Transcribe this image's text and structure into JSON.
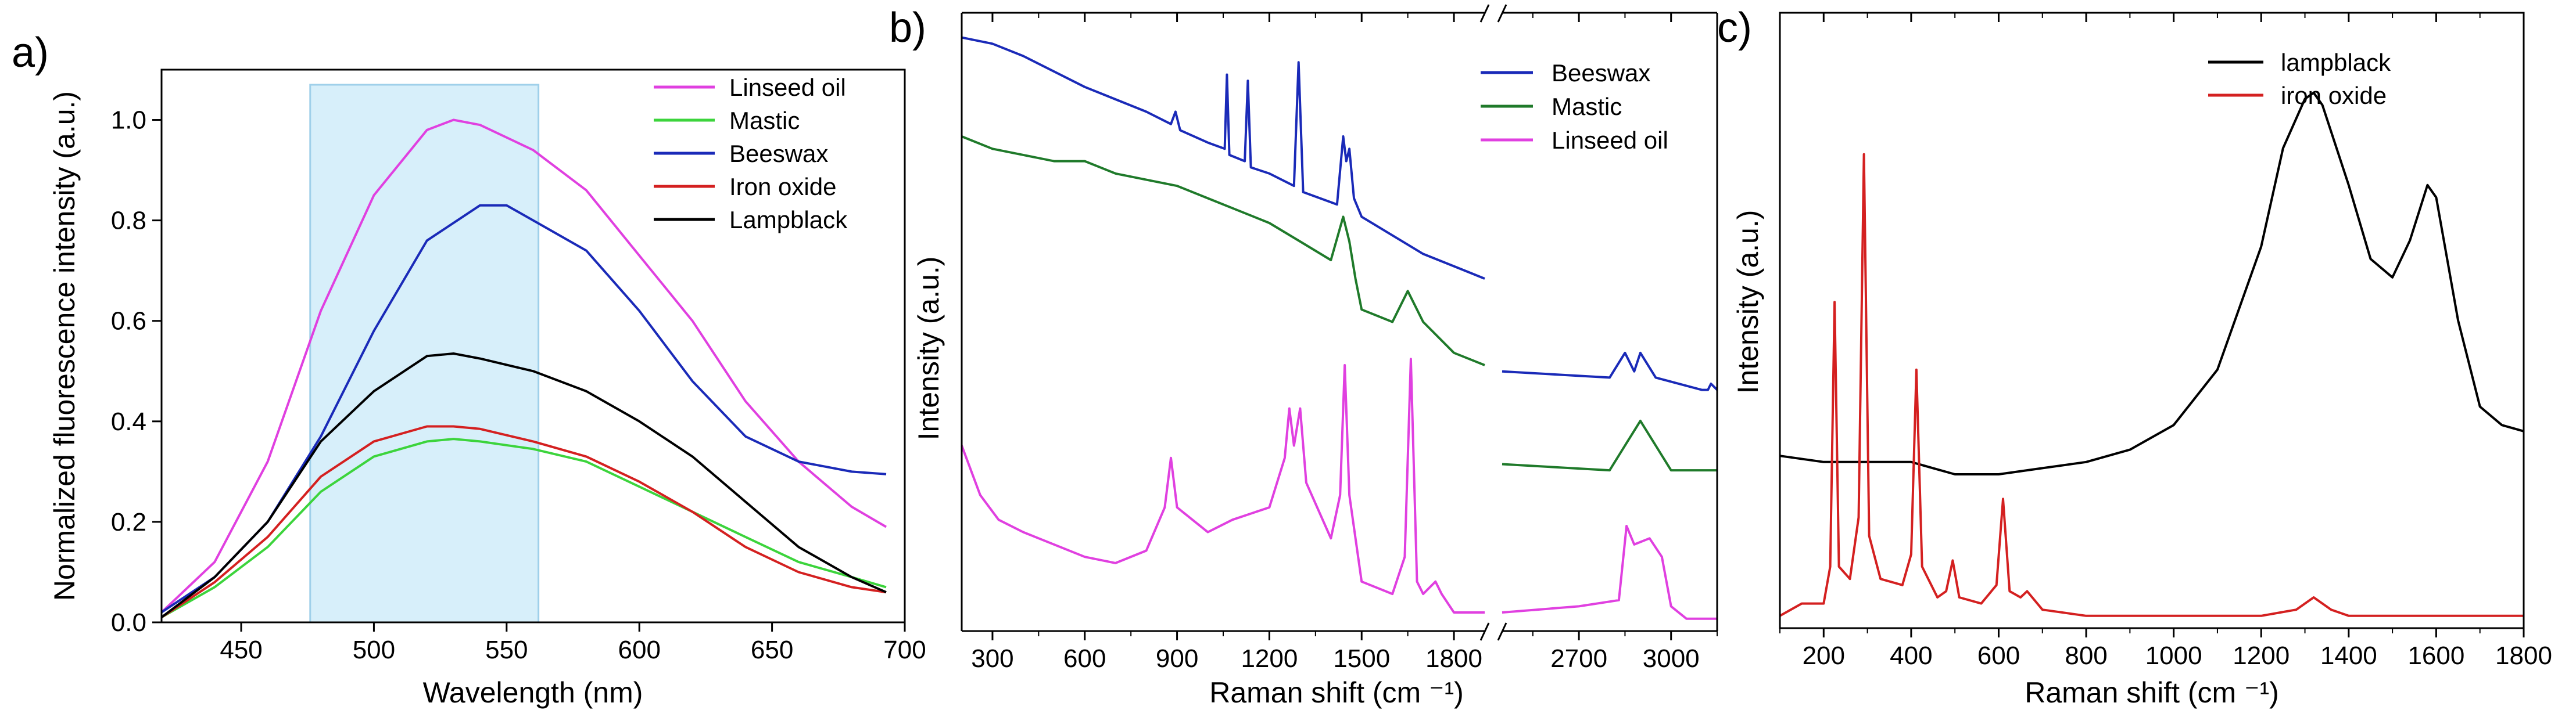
{
  "chart_data": [
    {
      "panel_label": "a)",
      "type": "line",
      "xlabel": "Wavelength (nm)",
      "ylabel": "Normalized fluorescence intensity (a.u.)",
      "xlim": [
        420,
        700
      ],
      "ylim": [
        0,
        1.1
      ],
      "x_ticks": [
        450,
        500,
        550,
        600,
        650,
        700
      ],
      "y_ticks": [
        0.0,
        0.2,
        0.4,
        0.6,
        0.8,
        1.0
      ],
      "x_tick_labels": [
        "450",
        "500",
        "550",
        "600",
        "650",
        "700"
      ],
      "y_tick_labels": [
        "0.0",
        "0.2",
        "0.4",
        "0.6",
        "0.8",
        "1.0"
      ],
      "highlight": {
        "x_range": [
          476,
          562
        ],
        "color": "#d7effa"
      },
      "legend_position": "top-right",
      "series": [
        {
          "name": "Linseed oil",
          "color": "#e040e0",
          "x": [
            420,
            440,
            460,
            480,
            500,
            520,
            530,
            540,
            560,
            580,
            600,
            620,
            640,
            660,
            680,
            693
          ],
          "y": [
            0.02,
            0.12,
            0.32,
            0.62,
            0.85,
            0.98,
            1.0,
            0.99,
            0.94,
            0.86,
            0.73,
            0.6,
            0.44,
            0.32,
            0.23,
            0.19
          ]
        },
        {
          "name": "Mastic",
          "color": "#3cd43c",
          "x": [
            420,
            440,
            460,
            480,
            500,
            520,
            530,
            540,
            560,
            580,
            600,
            620,
            640,
            660,
            680,
            693
          ],
          "y": [
            0.01,
            0.07,
            0.15,
            0.26,
            0.33,
            0.36,
            0.365,
            0.36,
            0.345,
            0.32,
            0.27,
            0.22,
            0.17,
            0.12,
            0.09,
            0.07
          ]
        },
        {
          "name": "Beeswax",
          "color": "#1a2ab8",
          "x": [
            420,
            440,
            460,
            480,
            500,
            520,
            540,
            550,
            560,
            580,
            600,
            620,
            640,
            660,
            680,
            693
          ],
          "y": [
            0.02,
            0.09,
            0.2,
            0.37,
            0.58,
            0.76,
            0.83,
            0.83,
            0.8,
            0.74,
            0.62,
            0.48,
            0.37,
            0.32,
            0.3,
            0.295
          ]
        },
        {
          "name": "Iron oxide",
          "color": "#d42020",
          "x": [
            420,
            440,
            460,
            480,
            500,
            520,
            530,
            540,
            560,
            580,
            600,
            620,
            640,
            660,
            680,
            693
          ],
          "y": [
            0.01,
            0.08,
            0.17,
            0.29,
            0.36,
            0.39,
            0.39,
            0.385,
            0.36,
            0.33,
            0.28,
            0.22,
            0.15,
            0.1,
            0.07,
            0.06
          ]
        },
        {
          "name": "Lampblack",
          "color": "#000000",
          "x": [
            420,
            440,
            460,
            480,
            500,
            520,
            530,
            540,
            560,
            580,
            600,
            620,
            640,
            660,
            680,
            693
          ],
          "y": [
            0.01,
            0.09,
            0.2,
            0.36,
            0.46,
            0.53,
            0.535,
            0.525,
            0.5,
            0.46,
            0.4,
            0.33,
            0.24,
            0.15,
            0.09,
            0.06
          ]
        }
      ]
    },
    {
      "panel_label": "b)",
      "type": "line",
      "xlabel": "Raman shift (cm ⁻¹)",
      "ylabel": "Intensity (a.u.)",
      "xlim": [
        200,
        3150
      ],
      "x_break": [
        1900,
        2450
      ],
      "x_ticks": [
        300,
        600,
        900,
        1200,
        1500,
        1800,
        2700,
        3000
      ],
      "x_tick_labels": [
        "300",
        "600",
        "900",
        "1200",
        "1500",
        "1800",
        "2700",
        "3000"
      ],
      "y_ticks_shown": false,
      "legend_position": "top-right",
      "series": [
        {
          "name": "Beeswax",
          "color": "#1a2ab8",
          "x": [
            200,
            300,
            400,
            600,
            800,
            880,
            895,
            910,
            1000,
            1055,
            1062,
            1070,
            1120,
            1130,
            1140,
            1200,
            1280,
            1295,
            1310,
            1420,
            1440,
            1450,
            1460,
            1475,
            1500,
            1600,
            1700,
            1800,
            1900,
            2450,
            2800,
            2850,
            2880,
            2900,
            2950,
            3100,
            3120,
            3130,
            3150
          ],
          "y": [
            0.96,
            0.95,
            0.93,
            0.88,
            0.84,
            0.82,
            0.84,
            0.81,
            0.79,
            0.78,
            0.9,
            0.77,
            0.76,
            0.89,
            0.75,
            0.74,
            0.72,
            0.92,
            0.71,
            0.69,
            0.8,
            0.76,
            0.78,
            0.7,
            0.67,
            0.64,
            0.61,
            0.59,
            0.57,
            0.42,
            0.41,
            0.45,
            0.42,
            0.45,
            0.41,
            0.39,
            0.39,
            0.4,
            0.39
          ]
        },
        {
          "name": "Mastic",
          "color": "#1f7a2a",
          "x": [
            200,
            300,
            400,
            500,
            600,
            700,
            800,
            900,
            1000,
            1100,
            1200,
            1300,
            1400,
            1440,
            1460,
            1480,
            1500,
            1600,
            1650,
            1700,
            1800,
            1900,
            2450,
            2800,
            2850,
            2900,
            2950,
            3000,
            3150
          ],
          "y": [
            0.8,
            0.78,
            0.77,
            0.76,
            0.76,
            0.74,
            0.73,
            0.72,
            0.7,
            0.68,
            0.66,
            0.63,
            0.6,
            0.67,
            0.63,
            0.57,
            0.52,
            0.5,
            0.55,
            0.5,
            0.45,
            0.43,
            0.27,
            0.26,
            0.3,
            0.34,
            0.3,
            0.26,
            0.26
          ]
        },
        {
          "name": "Linseed oil",
          "color": "#e040e0",
          "x": [
            200,
            260,
            320,
            400,
            600,
            700,
            800,
            860,
            880,
            900,
            1000,
            1080,
            1200,
            1250,
            1265,
            1280,
            1300,
            1320,
            1400,
            1430,
            1445,
            1460,
            1500,
            1600,
            1640,
            1660,
            1680,
            1700,
            1740,
            1760,
            1800,
            1900,
            2450,
            2700,
            2830,
            2855,
            2880,
            2930,
            2970,
            3000,
            3050,
            3150
          ],
          "y": [
            0.3,
            0.22,
            0.18,
            0.16,
            0.12,
            0.11,
            0.13,
            0.2,
            0.28,
            0.2,
            0.16,
            0.18,
            0.2,
            0.28,
            0.36,
            0.3,
            0.36,
            0.24,
            0.15,
            0.22,
            0.43,
            0.22,
            0.08,
            0.06,
            0.12,
            0.44,
            0.08,
            0.06,
            0.08,
            0.06,
            0.03,
            0.03,
            0.03,
            0.04,
            0.05,
            0.17,
            0.14,
            0.15,
            0.12,
            0.04,
            0.02,
            0.02
          ]
        }
      ]
    },
    {
      "panel_label": "c)",
      "type": "line",
      "xlabel": "Raman shift (cm ⁻¹)",
      "ylabel": "Intensity (a.u.)",
      "xlim": [
        100,
        1800
      ],
      "x_ticks": [
        200,
        400,
        600,
        800,
        1000,
        1200,
        1400,
        1600,
        1800
      ],
      "x_tick_labels": [
        "200",
        "400",
        "600",
        "800",
        "1000",
        "1200",
        "1400",
        "1600",
        "1800"
      ],
      "y_ticks_shown": false,
      "legend_position": "top-right",
      "series": [
        {
          "name": "lampblack",
          "color": "#000000",
          "x": [
            100,
            200,
            300,
            400,
            450,
            500,
            600,
            700,
            800,
            900,
            1000,
            1100,
            1200,
            1250,
            1300,
            1320,
            1340,
            1400,
            1450,
            1500,
            1540,
            1580,
            1600,
            1650,
            1700,
            1750,
            1800
          ],
          "y": [
            0.28,
            0.27,
            0.27,
            0.27,
            0.26,
            0.25,
            0.25,
            0.26,
            0.27,
            0.29,
            0.33,
            0.42,
            0.62,
            0.78,
            0.86,
            0.87,
            0.85,
            0.72,
            0.6,
            0.57,
            0.63,
            0.72,
            0.7,
            0.5,
            0.36,
            0.33,
            0.32
          ]
        },
        {
          "name": "iron oxide",
          "color": "#d42020",
          "x": [
            100,
            150,
            200,
            215,
            225,
            235,
            260,
            280,
            292,
            304,
            330,
            380,
            400,
            412,
            425,
            460,
            480,
            495,
            510,
            560,
            595,
            610,
            625,
            650,
            665,
            700,
            800,
            900,
            1000,
            1100,
            1200,
            1280,
            1320,
            1360,
            1400,
            1500,
            1600,
            1700,
            1800
          ],
          "y": [
            0.02,
            0.04,
            0.04,
            0.1,
            0.53,
            0.1,
            0.08,
            0.18,
            0.77,
            0.15,
            0.08,
            0.07,
            0.12,
            0.42,
            0.1,
            0.05,
            0.06,
            0.11,
            0.05,
            0.04,
            0.07,
            0.21,
            0.06,
            0.05,
            0.06,
            0.03,
            0.02,
            0.02,
            0.02,
            0.02,
            0.02,
            0.03,
            0.05,
            0.03,
            0.02,
            0.02,
            0.02,
            0.02,
            0.02
          ]
        }
      ]
    }
  ]
}
